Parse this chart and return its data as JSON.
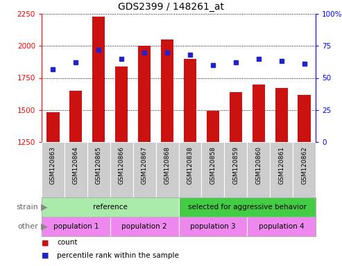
{
  "title": "GDS2399 / 148261_at",
  "samples": [
    "GSM120863",
    "GSM120864",
    "GSM120865",
    "GSM120866",
    "GSM120867",
    "GSM120868",
    "GSM120838",
    "GSM120858",
    "GSM120859",
    "GSM120860",
    "GSM120861",
    "GSM120862"
  ],
  "counts": [
    1480,
    1650,
    2230,
    1840,
    2000,
    2050,
    1900,
    1495,
    1640,
    1700,
    1670,
    1620
  ],
  "percentile_ranks": [
    57,
    62,
    72,
    65,
    70,
    70,
    68,
    60,
    62,
    65,
    63,
    61
  ],
  "ylim_left": [
    1250,
    2250
  ],
  "ylim_right": [
    0,
    100
  ],
  "yticks_left": [
    1250,
    1500,
    1750,
    2000,
    2250
  ],
  "yticks_right": [
    0,
    25,
    50,
    75,
    100
  ],
  "bar_color": "#cc1111",
  "dot_color": "#2222cc",
  "tick_label_bg": "#cccccc",
  "strain_groups": [
    {
      "text": "reference",
      "start": 0,
      "end": 6,
      "color": "#aaeaaa"
    },
    {
      "text": "selected for aggressive behavior",
      "start": 6,
      "end": 12,
      "color": "#44cc44"
    }
  ],
  "other_groups": [
    {
      "text": "population 1",
      "start": 0,
      "end": 3,
      "color": "#ee88ee"
    },
    {
      "text": "population 2",
      "start": 3,
      "end": 6,
      "color": "#ee88ee"
    },
    {
      "text": "population 3",
      "start": 6,
      "end": 9,
      "color": "#ee88ee"
    },
    {
      "text": "population 4",
      "start": 9,
      "end": 12,
      "color": "#ee88ee"
    }
  ],
  "legend_items": [
    {
      "label": "count",
      "color": "#cc1111"
    },
    {
      "label": "percentile rank within the sample",
      "color": "#2222cc"
    }
  ],
  "fig_bg": "#ffffff"
}
